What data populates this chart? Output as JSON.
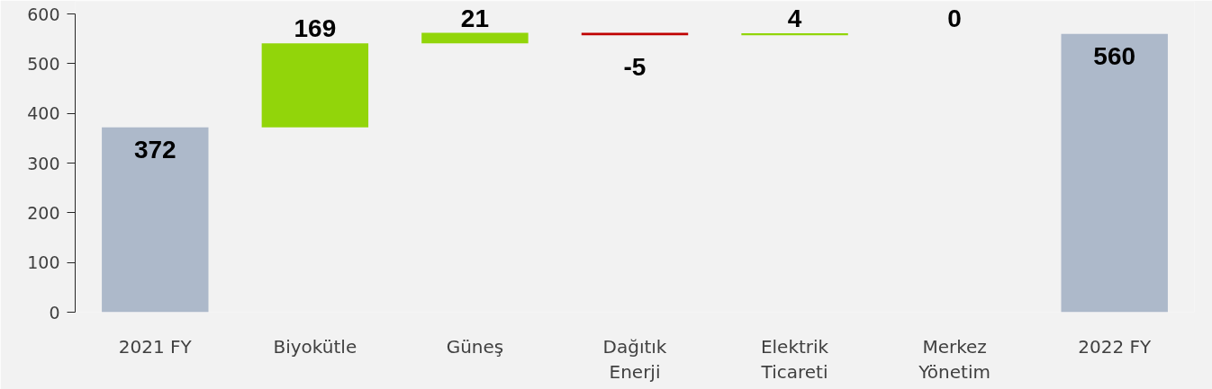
{
  "chart_data": {
    "type": "bar",
    "categories": [
      "2021 FY",
      "Biyokütle",
      "Güneş",
      "Dağıtık Enerji",
      "Elektrik Ticareti",
      "Merkez Yönetim",
      "2022 FY"
    ],
    "values": [
      372,
      169,
      21,
      -5,
      4,
      0,
      560
    ],
    "base": [
      0,
      372,
      541,
      562,
      557,
      null,
      0
    ],
    "colors": [
      "#adb9ca",
      "#92d50a",
      "#92d50a",
      "#c00000",
      "#92d50a",
      "#92d50a",
      "#adb9ca"
    ],
    "value_labels": [
      "372",
      "169",
      "21",
      "-5",
      "4",
      null,
      "560"
    ],
    "annotations": [
      "0"
    ],
    "ylim": [
      0,
      600
    ],
    "yticks": [
      0,
      100,
      200,
      300,
      400,
      500,
      600
    ]
  }
}
